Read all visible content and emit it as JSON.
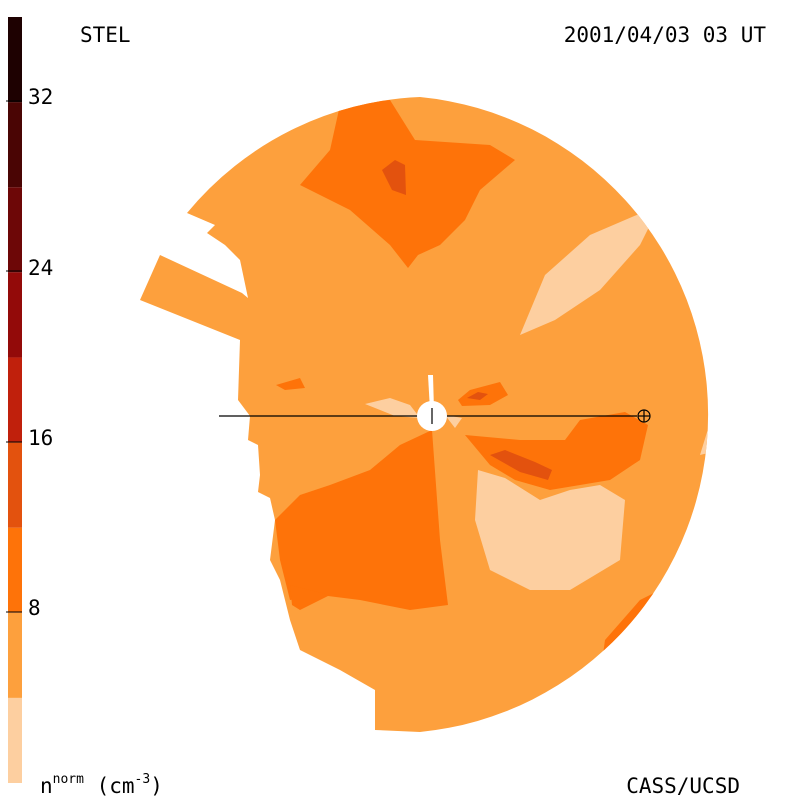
{
  "header": {
    "instrument": "STEL",
    "timestamp": "2001/04/03 03 UT"
  },
  "footer": {
    "credit": "CASS/UCSD"
  },
  "colorbar": {
    "label_base": "n",
    "label_sup": "norm",
    "label_unit_open": " (cm",
    "label_unit_sup": "-3",
    "label_unit_close": ")",
    "ticks": [
      "8",
      "16",
      "24",
      "32"
    ],
    "bins": [
      {
        "from": 0,
        "to": 4,
        "color": "#FDCFA0"
      },
      {
        "from": 4,
        "to": 8,
        "color": "#FDA03D"
      },
      {
        "from": 8,
        "to": 12,
        "color": "#FE7309"
      },
      {
        "from": 12,
        "to": 16,
        "color": "#E3520E"
      },
      {
        "from": 16,
        "to": 20,
        "color": "#C0200C"
      },
      {
        "from": 20,
        "to": 24,
        "color": "#930A09"
      },
      {
        "from": 24,
        "to": 28,
        "color": "#6D0707"
      },
      {
        "from": 28,
        "to": 32,
        "color": "#4A0504"
      },
      {
        "from": 32,
        "to": 36,
        "color": "#1E0101"
      }
    ]
  },
  "chart_data": {
    "type": "heatmap",
    "title": "STEL",
    "timestamp": "2001/04/03 03 UT",
    "quantity": "n norm (cm-3)",
    "range": [
      0,
      36
    ],
    "tick_values": [
      8,
      16,
      24,
      32
    ],
    "levels": [
      {
        "value": 2,
        "color": "#FDCFA0",
        "regions": [
          "north-east streak",
          "south-east",
          "east limb",
          "near sun west"
        ]
      },
      {
        "value": 6,
        "color": "#FDA03D",
        "regions": [
          "background"
        ]
      },
      {
        "value": 10,
        "color": "#FE7309",
        "regions": [
          "north",
          "south",
          "east of sun",
          "south-east limb"
        ]
      },
      {
        "value": 14,
        "color": "#E3520E",
        "regions": [
          "north core",
          "east core"
        ]
      }
    ],
    "grid": false
  }
}
